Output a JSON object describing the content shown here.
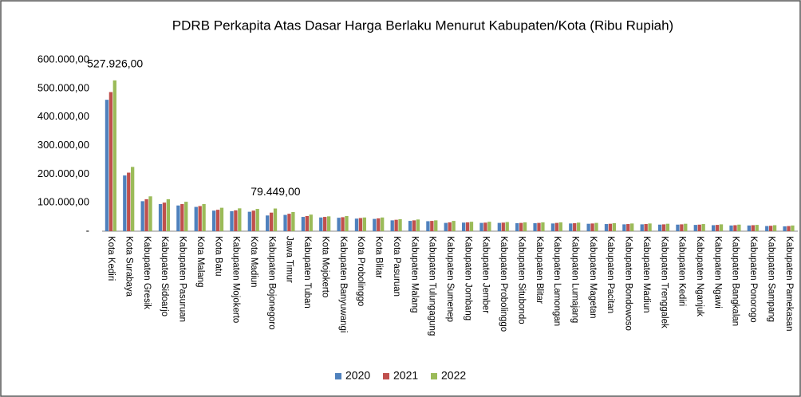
{
  "chart_data": {
    "type": "bar",
    "title": "PDRB Perkapita Atas Dasar Harga Berlaku Menurut Kabupaten/Kota (Ribu Rupiah)",
    "categories": [
      "Kota Kediri",
      "Kota Surabaya",
      "Kabupaten Gresik",
      "Kabupaten Sidoarjo",
      "Kabupaten Pasuruan",
      "Kota Malang",
      "Kota Batu",
      "Kabupaten Mojokerto",
      "Kota Madiun",
      "Kabupaten Bojonegoro",
      "Jawa Timur",
      "Kabupaten Tuban",
      "Kota Mojokerto",
      "Kabupaten Banyuwangi",
      "Kota Probolinggo",
      "Kota Blitar",
      "Kota Pasuruan",
      "Kabupaten Malang",
      "Kabupaten Tulungagung",
      "Kabupaten Sumenep",
      "Kabupaten Jombang",
      "Kabupaten Jember",
      "Kabupaten Probolinggo",
      "Kabupaten Situbondo",
      "Kabupaten Blitar",
      "Kabupaten Lamongan",
      "Kabupaten Lumajang",
      "Kabupaten Magetan",
      "Kabupaten Pacitan",
      "Kabupaten Bondowoso",
      "Kabupaten Madiun",
      "Kabupaten Trenggalek",
      "Kabupaten Kediri",
      "Kabupaten Nganjuk",
      "Kabupaten Ngawi",
      "Kabupaten Bangkalan",
      "Kabupaten Ponorogo",
      "Kabupaten Sampang",
      "Kabupaten Pamekasan"
    ],
    "series": [
      {
        "name": "2020",
        "color": "#4f81bd",
        "values": [
          460000,
          195000,
          105000,
          95000,
          90000,
          85000,
          72000,
          70000,
          68000,
          55000,
          57000,
          50000,
          48000,
          47000,
          44000,
          43000,
          38000,
          36000,
          35000,
          29000,
          30000,
          29000,
          29000,
          28000,
          28000,
          27000,
          27000,
          26000,
          25000,
          24000,
          24000,
          23000,
          23000,
          22000,
          21000,
          20000,
          20000,
          18000,
          17000
        ]
      },
      {
        "name": "2021",
        "color": "#c0504d",
        "values": [
          487000,
          205000,
          112000,
          100000,
          95000,
          88000,
          75000,
          73000,
          72000,
          65000,
          61000,
          53000,
          50000,
          49000,
          46000,
          45000,
          40000,
          38000,
          36000,
          31000,
          31000,
          30000,
          30000,
          29000,
          29000,
          29000,
          28000,
          27000,
          26000,
          25000,
          25000,
          24000,
          24000,
          23000,
          22000,
          21000,
          21000,
          19000,
          18000
        ]
      },
      {
        "name": "2022",
        "color": "#9bbb59",
        "values": [
          527926,
          225000,
          122000,
          112000,
          103000,
          95000,
          82000,
          80000,
          78000,
          79449,
          67000,
          58000,
          52000,
          53000,
          48000,
          48000,
          42000,
          41000,
          38000,
          36000,
          33000,
          33000,
          32000,
          31000,
          31000,
          31000,
          30000,
          29000,
          28000,
          27000,
          27000,
          26000,
          26000,
          25000,
          24000,
          23000,
          22000,
          21000,
          20000
        ],
        "value_labels": [
          "527.926,00",
          null,
          null,
          null,
          null,
          null,
          null,
          null,
          null,
          "79.449,00",
          null,
          null,
          null,
          null,
          null,
          null,
          null,
          null,
          null,
          null,
          null,
          null,
          null,
          null,
          null,
          null,
          null,
          null,
          null,
          null,
          null,
          null,
          null,
          null,
          null,
          null,
          null,
          null,
          null
        ]
      }
    ],
    "ylim": [
      0,
      600000
    ],
    "yticks": [
      {
        "value": 0,
        "label": "-"
      },
      {
        "value": 100000,
        "label": "100.000,00"
      },
      {
        "value": 200000,
        "label": "200.000,00"
      },
      {
        "value": 300000,
        "label": "300.000,00"
      },
      {
        "value": 400000,
        "label": "400.000,00"
      },
      {
        "value": 500000,
        "label": "500.000,00"
      },
      {
        "value": 600000,
        "label": "600.000,00"
      }
    ],
    "grid": false,
    "legend": "bottom"
  }
}
